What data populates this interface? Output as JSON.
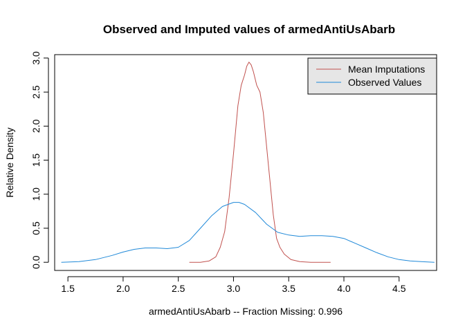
{
  "chart_data": {
    "type": "line",
    "title": "Observed and Imputed values of armedAntiUsAbarb",
    "xlabel": "armedAntiUsAbarb   --  Fraction Missing: 0.996",
    "ylabel": "Relative Density",
    "xlim": [
      1.38,
      4.84
    ],
    "ylim": [
      -0.12,
      3.05
    ],
    "xticks": [
      1.5,
      2.0,
      2.5,
      3.0,
      3.5,
      4.0,
      4.5
    ],
    "xtick_labels": [
      "1.5",
      "2.0",
      "2.5",
      "3.0",
      "3.5",
      "4.0",
      "4.5"
    ],
    "yticks": [
      0.0,
      0.5,
      1.0,
      1.5,
      2.0,
      2.5,
      3.0
    ],
    "ytick_labels": [
      "0.0",
      "0.5",
      "1.0",
      "1.5",
      "2.0",
      "2.5",
      "3.0"
    ],
    "grid": false,
    "legend_position": "top-right",
    "series": [
      {
        "name": "Mean Imputations",
        "color": "#c0504d",
        "x": [
          2.6,
          2.7,
          2.78,
          2.84,
          2.88,
          2.92,
          2.96,
          3.0,
          3.04,
          3.07,
          3.1,
          3.12,
          3.14,
          3.16,
          3.18,
          3.21,
          3.24,
          3.27,
          3.3,
          3.33,
          3.36,
          3.39,
          3.42,
          3.46,
          3.52,
          3.6,
          3.7,
          3.8,
          3.88
        ],
        "y": [
          0.0,
          0.0,
          0.02,
          0.08,
          0.22,
          0.45,
          0.95,
          1.6,
          2.3,
          2.6,
          2.75,
          2.88,
          2.94,
          2.9,
          2.8,
          2.6,
          2.5,
          2.2,
          1.7,
          1.2,
          0.7,
          0.35,
          0.22,
          0.12,
          0.04,
          0.01,
          0.0,
          0.0,
          0.0
        ]
      },
      {
        "name": "Observed Values",
        "color": "#1e88d8",
        "x": [
          1.44,
          1.6,
          1.75,
          1.9,
          2.0,
          2.1,
          2.2,
          2.3,
          2.4,
          2.5,
          2.6,
          2.7,
          2.8,
          2.9,
          3.0,
          3.05,
          3.1,
          3.2,
          3.3,
          3.4,
          3.5,
          3.6,
          3.7,
          3.8,
          3.9,
          4.0,
          4.1,
          4.2,
          4.3,
          4.4,
          4.5,
          4.6,
          4.7,
          4.82
        ],
        "y": [
          0.0,
          0.01,
          0.04,
          0.1,
          0.15,
          0.19,
          0.21,
          0.21,
          0.2,
          0.22,
          0.32,
          0.5,
          0.68,
          0.82,
          0.88,
          0.88,
          0.85,
          0.73,
          0.56,
          0.44,
          0.4,
          0.38,
          0.39,
          0.39,
          0.38,
          0.35,
          0.28,
          0.21,
          0.14,
          0.08,
          0.04,
          0.02,
          0.01,
          0.0
        ]
      }
    ]
  }
}
